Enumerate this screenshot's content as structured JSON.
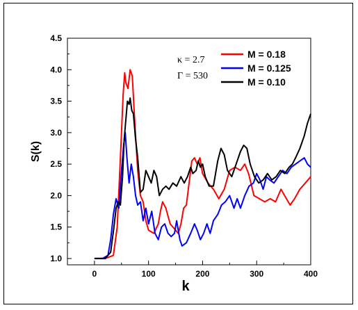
{
  "chart_data": {
    "type": "line",
    "xlabel": "k",
    "ylabel": "S(k)",
    "xlim": [
      -50,
      400
    ],
    "ylim": [
      0.9,
      4.5
    ],
    "xticks": [
      0,
      100,
      200,
      300,
      400
    ],
    "yticks": [
      1.0,
      1.5,
      2.0,
      2.5,
      3.0,
      3.5,
      4.0,
      4.5
    ],
    "xtick_labels": [
      "0",
      "100",
      "200",
      "300",
      "400"
    ],
    "ytick_labels": [
      "1.0",
      "1.5",
      "2.0",
      "2.5",
      "3.0",
      "3.5",
      "4.0",
      "4.5"
    ],
    "annotations": [
      "κ = 2.7",
      "Γ = 530"
    ],
    "legend_position": "top-right",
    "series": [
      {
        "name": "M = 0.18",
        "color": "#ff0000",
        "points": [
          [
            0,
            1.0
          ],
          [
            20,
            1.0
          ],
          [
            35,
            1.05
          ],
          [
            42,
            1.5
          ],
          [
            48,
            2.6
          ],
          [
            53,
            3.6
          ],
          [
            56,
            3.95
          ],
          [
            58,
            3.8
          ],
          [
            62,
            3.7
          ],
          [
            66,
            4.0
          ],
          [
            70,
            3.9
          ],
          [
            75,
            3.1
          ],
          [
            80,
            2.4
          ],
          [
            85,
            2.0
          ],
          [
            90,
            1.9
          ],
          [
            95,
            1.6
          ],
          [
            100,
            1.45
          ],
          [
            110,
            1.4
          ],
          [
            118,
            1.55
          ],
          [
            122,
            1.75
          ],
          [
            126,
            1.9
          ],
          [
            132,
            1.8
          ],
          [
            140,
            1.55
          ],
          [
            150,
            1.45
          ],
          [
            155,
            1.4
          ],
          [
            160,
            1.55
          ],
          [
            165,
            1.8
          ],
          [
            170,
            1.85
          ],
          [
            175,
            2.2
          ],
          [
            180,
            2.55
          ],
          [
            185,
            2.6
          ],
          [
            190,
            2.5
          ],
          [
            195,
            2.6
          ],
          [
            200,
            2.35
          ],
          [
            210,
            2.2
          ],
          [
            220,
            2.1
          ],
          [
            230,
            1.95
          ],
          [
            240,
            2.1
          ],
          [
            250,
            2.4
          ],
          [
            260,
            2.45
          ],
          [
            270,
            2.4
          ],
          [
            278,
            2.5
          ],
          [
            285,
            2.35
          ],
          [
            295,
            2.0
          ],
          [
            305,
            1.95
          ],
          [
            315,
            1.9
          ],
          [
            325,
            1.95
          ],
          [
            335,
            1.9
          ],
          [
            345,
            2.1
          ],
          [
            355,
            1.95
          ],
          [
            362,
            1.85
          ],
          [
            370,
            1.95
          ],
          [
            380,
            2.1
          ],
          [
            390,
            2.2
          ],
          [
            400,
            2.3
          ]
        ]
      },
      {
        "name": "M = 0.125",
        "color": "#0000ff",
        "points": [
          [
            0,
            1.0
          ],
          [
            15,
            1.0
          ],
          [
            25,
            1.05
          ],
          [
            30,
            1.3
          ],
          [
            35,
            1.7
          ],
          [
            40,
            1.95
          ],
          [
            45,
            1.8
          ],
          [
            50,
            2.4
          ],
          [
            54,
            2.8
          ],
          [
            57,
            3.0
          ],
          [
            60,
            2.6
          ],
          [
            64,
            2.2
          ],
          [
            68,
            2.5
          ],
          [
            72,
            2.3
          ],
          [
            76,
            2.0
          ],
          [
            80,
            1.85
          ],
          [
            85,
            1.9
          ],
          [
            90,
            1.6
          ],
          [
            95,
            1.8
          ],
          [
            100,
            1.55
          ],
          [
            106,
            1.75
          ],
          [
            112,
            1.4
          ],
          [
            118,
            1.3
          ],
          [
            124,
            1.5
          ],
          [
            130,
            1.55
          ],
          [
            136,
            1.4
          ],
          [
            142,
            1.35
          ],
          [
            148,
            1.4
          ],
          [
            152,
            1.6
          ],
          [
            158,
            1.3
          ],
          [
            162,
            1.2
          ],
          [
            170,
            1.25
          ],
          [
            178,
            1.4
          ],
          [
            185,
            1.55
          ],
          [
            190,
            1.45
          ],
          [
            196,
            1.3
          ],
          [
            202,
            1.4
          ],
          [
            208,
            1.55
          ],
          [
            214,
            1.4
          ],
          [
            220,
            1.6
          ],
          [
            228,
            1.7
          ],
          [
            235,
            1.85
          ],
          [
            242,
            1.9
          ],
          [
            250,
            2.0
          ],
          [
            258,
            1.8
          ],
          [
            264,
            1.95
          ],
          [
            270,
            1.8
          ],
          [
            278,
            2.0
          ],
          [
            286,
            2.15
          ],
          [
            294,
            2.2
          ],
          [
            300,
            2.35
          ],
          [
            306,
            2.25
          ],
          [
            312,
            2.1
          ],
          [
            318,
            2.3
          ],
          [
            324,
            2.25
          ],
          [
            332,
            2.2
          ],
          [
            340,
            2.3
          ],
          [
            348,
            2.4
          ],
          [
            356,
            2.35
          ],
          [
            364,
            2.45
          ],
          [
            372,
            2.5
          ],
          [
            380,
            2.55
          ],
          [
            388,
            2.6
          ],
          [
            394,
            2.5
          ],
          [
            400,
            2.45
          ]
        ]
      },
      {
        "name": "M = 0.10",
        "color": "#000000",
        "points": [
          [
            0,
            1.0
          ],
          [
            20,
            1.0
          ],
          [
            30,
            1.1
          ],
          [
            36,
            1.5
          ],
          [
            40,
            1.8
          ],
          [
            44,
            1.9
          ],
          [
            48,
            1.85
          ],
          [
            52,
            2.3
          ],
          [
            55,
            2.9
          ],
          [
            58,
            3.2
          ],
          [
            61,
            3.5
          ],
          [
            64,
            3.45
          ],
          [
            66,
            3.55
          ],
          [
            69,
            3.35
          ],
          [
            72,
            3.3
          ],
          [
            76,
            2.9
          ],
          [
            80,
            2.6
          ],
          [
            85,
            2.05
          ],
          [
            90,
            2.1
          ],
          [
            95,
            2.4
          ],
          [
            100,
            2.3
          ],
          [
            105,
            2.2
          ],
          [
            110,
            2.4
          ],
          [
            115,
            2.3
          ],
          [
            120,
            2.0
          ],
          [
            126,
            2.1
          ],
          [
            132,
            2.15
          ],
          [
            138,
            2.1
          ],
          [
            145,
            2.2
          ],
          [
            152,
            2.15
          ],
          [
            160,
            2.3
          ],
          [
            166,
            2.2
          ],
          [
            172,
            2.3
          ],
          [
            178,
            2.45
          ],
          [
            182,
            2.35
          ],
          [
            188,
            2.4
          ],
          [
            192,
            2.55
          ],
          [
            196,
            2.45
          ],
          [
            200,
            2.5
          ],
          [
            205,
            2.3
          ],
          [
            212,
            2.15
          ],
          [
            220,
            2.15
          ],
          [
            228,
            2.55
          ],
          [
            234,
            2.75
          ],
          [
            240,
            2.65
          ],
          [
            246,
            2.4
          ],
          [
            254,
            2.3
          ],
          [
            262,
            2.5
          ],
          [
            270,
            2.7
          ],
          [
            276,
            2.8
          ],
          [
            282,
            2.75
          ],
          [
            288,
            2.5
          ],
          [
            296,
            2.3
          ],
          [
            304,
            2.2
          ],
          [
            312,
            2.25
          ],
          [
            320,
            2.35
          ],
          [
            328,
            2.25
          ],
          [
            336,
            2.3
          ],
          [
            344,
            2.4
          ],
          [
            352,
            2.35
          ],
          [
            360,
            2.45
          ],
          [
            366,
            2.5
          ],
          [
            372,
            2.6
          ],
          [
            380,
            2.75
          ],
          [
            388,
            2.95
          ],
          [
            394,
            3.15
          ],
          [
            400,
            3.3
          ]
        ]
      }
    ]
  }
}
